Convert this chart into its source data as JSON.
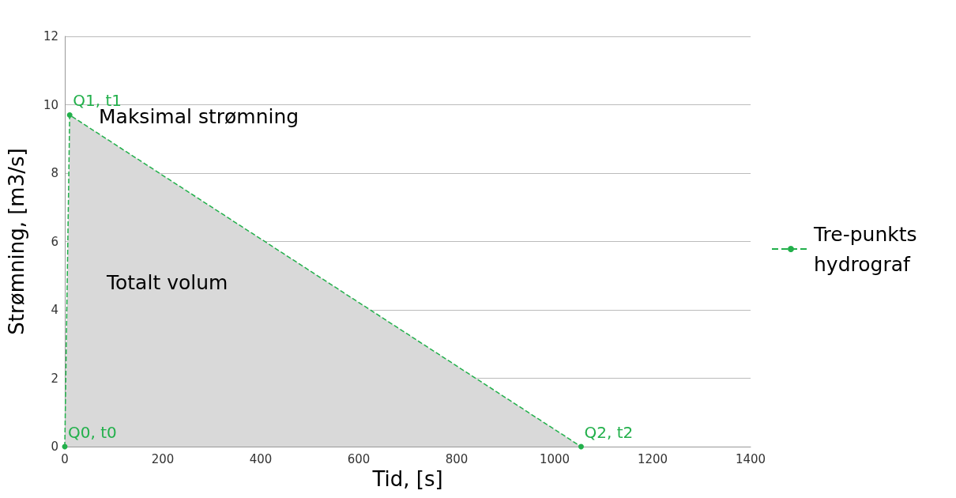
{
  "chart_data": {
    "type": "area",
    "xlabel": "Tid, [s]",
    "ylabel": "Strømning, [m3/s]",
    "x": [
      0,
      10,
      1054
    ],
    "series": [
      {
        "name": "Tre-punkts hydrograf",
        "color": "#22b04b",
        "values": [
          0,
          9.7,
          0
        ]
      }
    ],
    "xlim": [
      0,
      1400
    ],
    "xticks": [
      0,
      200,
      400,
      600,
      800,
      1000,
      1200,
      1400
    ],
    "ylim": [
      0,
      12
    ],
    "yticks": [
      0,
      2,
      4,
      6,
      8,
      10,
      12
    ],
    "grid": "y",
    "legend": "right",
    "marker": "circle",
    "line_style": "dashed",
    "annotations": [
      {
        "text": "Q0, t0",
        "x": 0,
        "y": 0
      },
      {
        "text": "Q1, t1",
        "x": 10,
        "y": 9.7
      },
      {
        "text": "Q2, t2",
        "x": 1054,
        "y": 0
      },
      "Maksimal strømning",
      "Totalt volum"
    ]
  }
}
